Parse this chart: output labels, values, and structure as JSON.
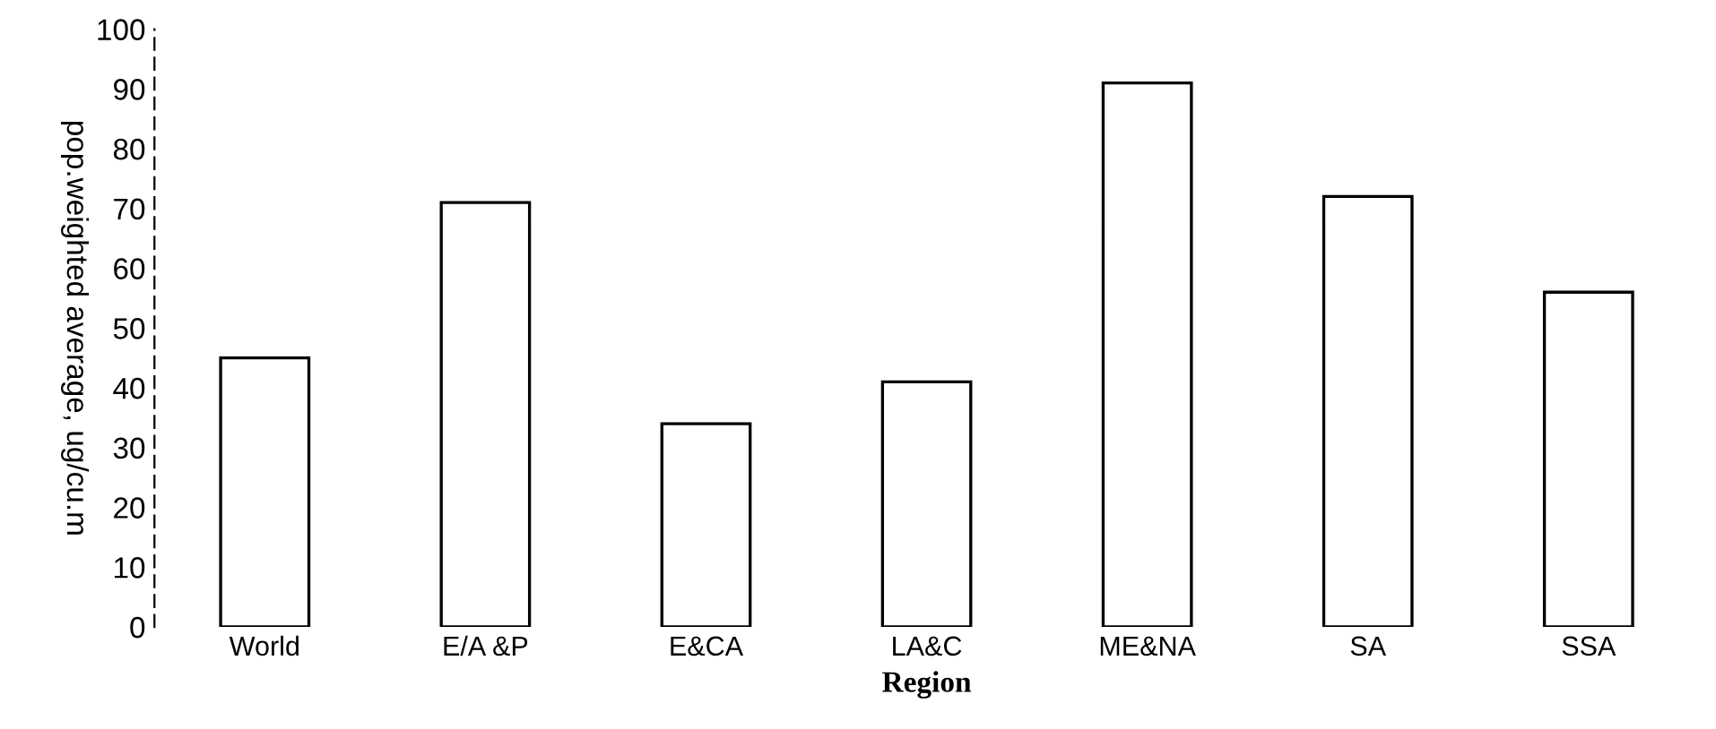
{
  "chart_data": {
    "type": "bar",
    "xlabel": "Region",
    "ylabel": "pop.weighted average, ug/cu.m",
    "categories": [
      "World",
      "E/A &P",
      "E&CA",
      "LA&C",
      "ME&NA",
      "SA",
      "SSA"
    ],
    "values": [
      45,
      71,
      34,
      41,
      91,
      72,
      56
    ],
    "color": "#ffffff",
    "ylim": [
      0,
      100
    ],
    "yticks": [
      0,
      10,
      20,
      30,
      40,
      50,
      60,
      70,
      80,
      90,
      100
    ],
    "grid": false,
    "legend": false
  }
}
